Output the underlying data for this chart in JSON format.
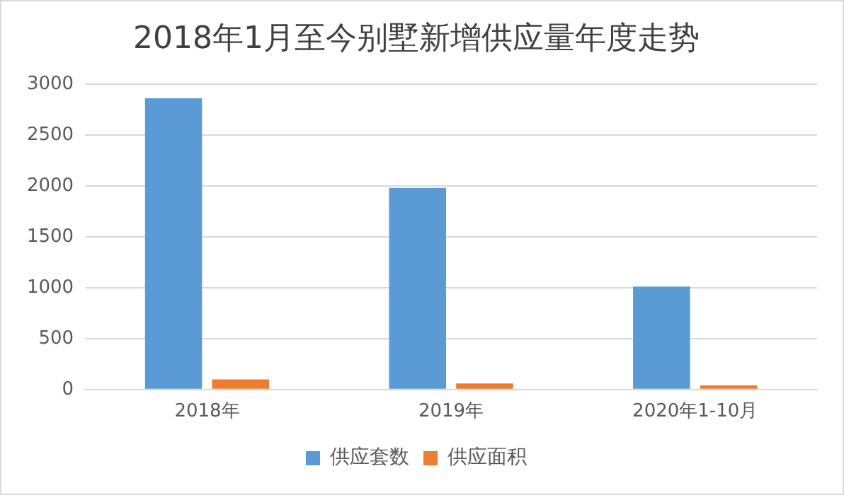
{
  "chart_data": {
    "type": "bar",
    "title": "2018年1月至今别墅新增供应量年度走势",
    "categories": [
      "2018年",
      "2019年",
      "2020年1-10月"
    ],
    "series": [
      {
        "name": "供应套数",
        "color": "#5b9bd5",
        "values": [
          2860,
          1980,
          1010
        ]
      },
      {
        "name": "供应面积",
        "color": "#ed7d31",
        "values": [
          100,
          60,
          40
        ]
      }
    ],
    "ylim": [
      0,
      3000
    ],
    "yticks": [
      0,
      500,
      1000,
      1500,
      2000,
      2500,
      3000
    ],
    "grid": "y",
    "legend": "bottom"
  }
}
